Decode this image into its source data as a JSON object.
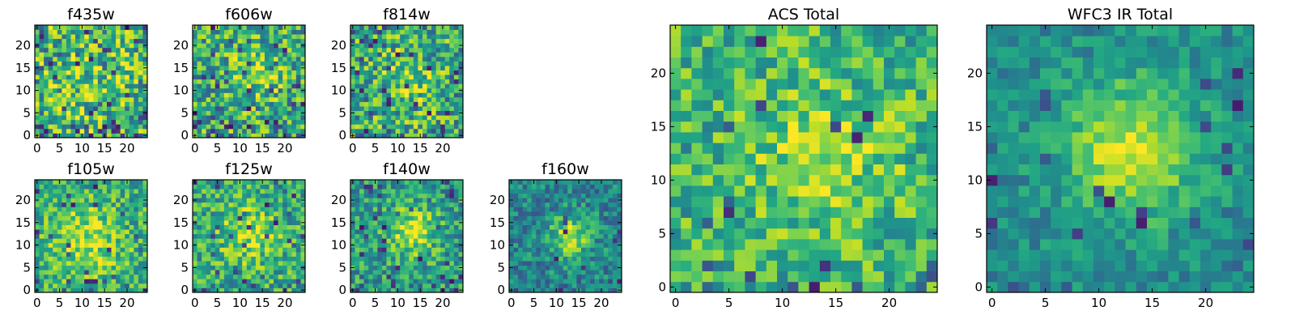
{
  "chart_data": [
    {
      "type": "heatmap",
      "title": "f435w",
      "grid_size": 25,
      "colormap": "viridis",
      "xticks": [
        0,
        5,
        10,
        15,
        20
      ],
      "yticks": [
        0,
        5,
        10,
        15,
        20
      ],
      "xlim": [
        -0.5,
        24.5
      ],
      "ylim": [
        -0.5,
        24.5
      ],
      "pattern": {
        "noise": 0.42,
        "peak": 0.1,
        "center": [
          12,
          12
        ],
        "sigma": 5,
        "base": 0.66,
        "dark_fraction": 0.06
      }
    },
    {
      "type": "heatmap",
      "title": "f606w",
      "grid_size": 25,
      "colormap": "viridis",
      "xticks": [
        0,
        5,
        10,
        15,
        20
      ],
      "yticks": [
        0,
        5,
        10,
        15,
        20
      ],
      "xlim": [
        -0.5,
        24.5
      ],
      "ylim": [
        -0.5,
        24.5
      ],
      "pattern": {
        "noise": 0.4,
        "peak": 0.18,
        "center": [
          13,
          14
        ],
        "sigma": 4,
        "base": 0.62,
        "dark_fraction": 0.07
      }
    },
    {
      "type": "heatmap",
      "title": "f814w",
      "grid_size": 25,
      "colormap": "viridis",
      "xticks": [
        0,
        5,
        10,
        15,
        20
      ],
      "yticks": [
        0,
        5,
        10,
        15,
        20
      ],
      "xlim": [
        -0.5,
        24.5
      ],
      "ylim": [
        -0.5,
        24.5
      ],
      "pattern": {
        "noise": 0.4,
        "peak": 0.2,
        "center": [
          13,
          13
        ],
        "sigma": 4,
        "base": 0.62,
        "dark_fraction": 0.07
      }
    },
    {
      "type": "heatmap",
      "title": "f105w",
      "grid_size": 25,
      "colormap": "viridis",
      "xticks": [
        0,
        5,
        10,
        15,
        20
      ],
      "yticks": [
        0,
        5,
        10,
        15,
        20
      ],
      "xlim": [
        -0.5,
        24.5
      ],
      "ylim": [
        -0.5,
        24.5
      ],
      "pattern": {
        "noise": 0.3,
        "peak": 0.25,
        "center": [
          11,
          11
        ],
        "sigma": 6,
        "base": 0.62,
        "dark_fraction": 0.04
      }
    },
    {
      "type": "heatmap",
      "title": "f125w",
      "grid_size": 25,
      "colormap": "viridis",
      "xticks": [
        0,
        5,
        10,
        15,
        20
      ],
      "yticks": [
        0,
        5,
        10,
        15,
        20
      ],
      "xlim": [
        -0.5,
        24.5
      ],
      "ylim": [
        -0.5,
        24.5
      ],
      "pattern": {
        "noise": 0.32,
        "peak": 0.25,
        "center": [
          12,
          12
        ],
        "sigma": 5,
        "base": 0.6,
        "dark_fraction": 0.05
      }
    },
    {
      "type": "heatmap",
      "title": "f140w",
      "grid_size": 25,
      "colormap": "viridis",
      "xticks": [
        0,
        5,
        10,
        15,
        20
      ],
      "yticks": [
        0,
        5,
        10,
        15,
        20
      ],
      "xlim": [
        -0.5,
        24.5
      ],
      "ylim": [
        -0.5,
        24.5
      ],
      "pattern": {
        "noise": 0.3,
        "peak": 0.35,
        "center": [
          13,
          13
        ],
        "sigma": 4,
        "base": 0.55,
        "dark_fraction": 0.05
      }
    },
    {
      "type": "heatmap",
      "title": "f160w",
      "grid_size": 25,
      "colormap": "viridis",
      "xticks": [
        0,
        5,
        10,
        15,
        20
      ],
      "yticks": [
        0,
        5,
        10,
        15,
        20
      ],
      "xlim": [
        -0.5,
        24.5
      ],
      "ylim": [
        -0.5,
        24.5
      ],
      "pattern": {
        "noise": 0.26,
        "peak": 0.42,
        "center": [
          13,
          12
        ],
        "sigma": 3.5,
        "base": 0.45,
        "dark_fraction": 0.04
      }
    },
    {
      "type": "heatmap",
      "title": "ACS Total",
      "grid_size": 25,
      "colormap": "viridis",
      "xticks": [
        0,
        5,
        10,
        15,
        20
      ],
      "yticks": [
        0,
        5,
        10,
        15,
        20
      ],
      "xlim": [
        -0.5,
        24.5
      ],
      "ylim": [
        -0.5,
        24.5
      ],
      "pattern": {
        "noise": 0.3,
        "peak": 0.22,
        "center": [
          14,
          12
        ],
        "sigma": 5,
        "base": 0.64,
        "dark_fraction": 0.035
      }
    },
    {
      "type": "heatmap",
      "title": "WFC3 IR Total",
      "grid_size": 25,
      "colormap": "viridis",
      "xticks": [
        0,
        5,
        10,
        15,
        20
      ],
      "yticks": [
        0,
        5,
        10,
        15,
        20
      ],
      "xlim": [
        -0.5,
        24.5
      ],
      "ylim": [
        -0.5,
        24.5
      ],
      "pattern": {
        "noise": 0.18,
        "peak": 0.45,
        "center": [
          13,
          13
        ],
        "sigma": 4.5,
        "base": 0.48,
        "dark_fraction": 0.03
      }
    }
  ]
}
